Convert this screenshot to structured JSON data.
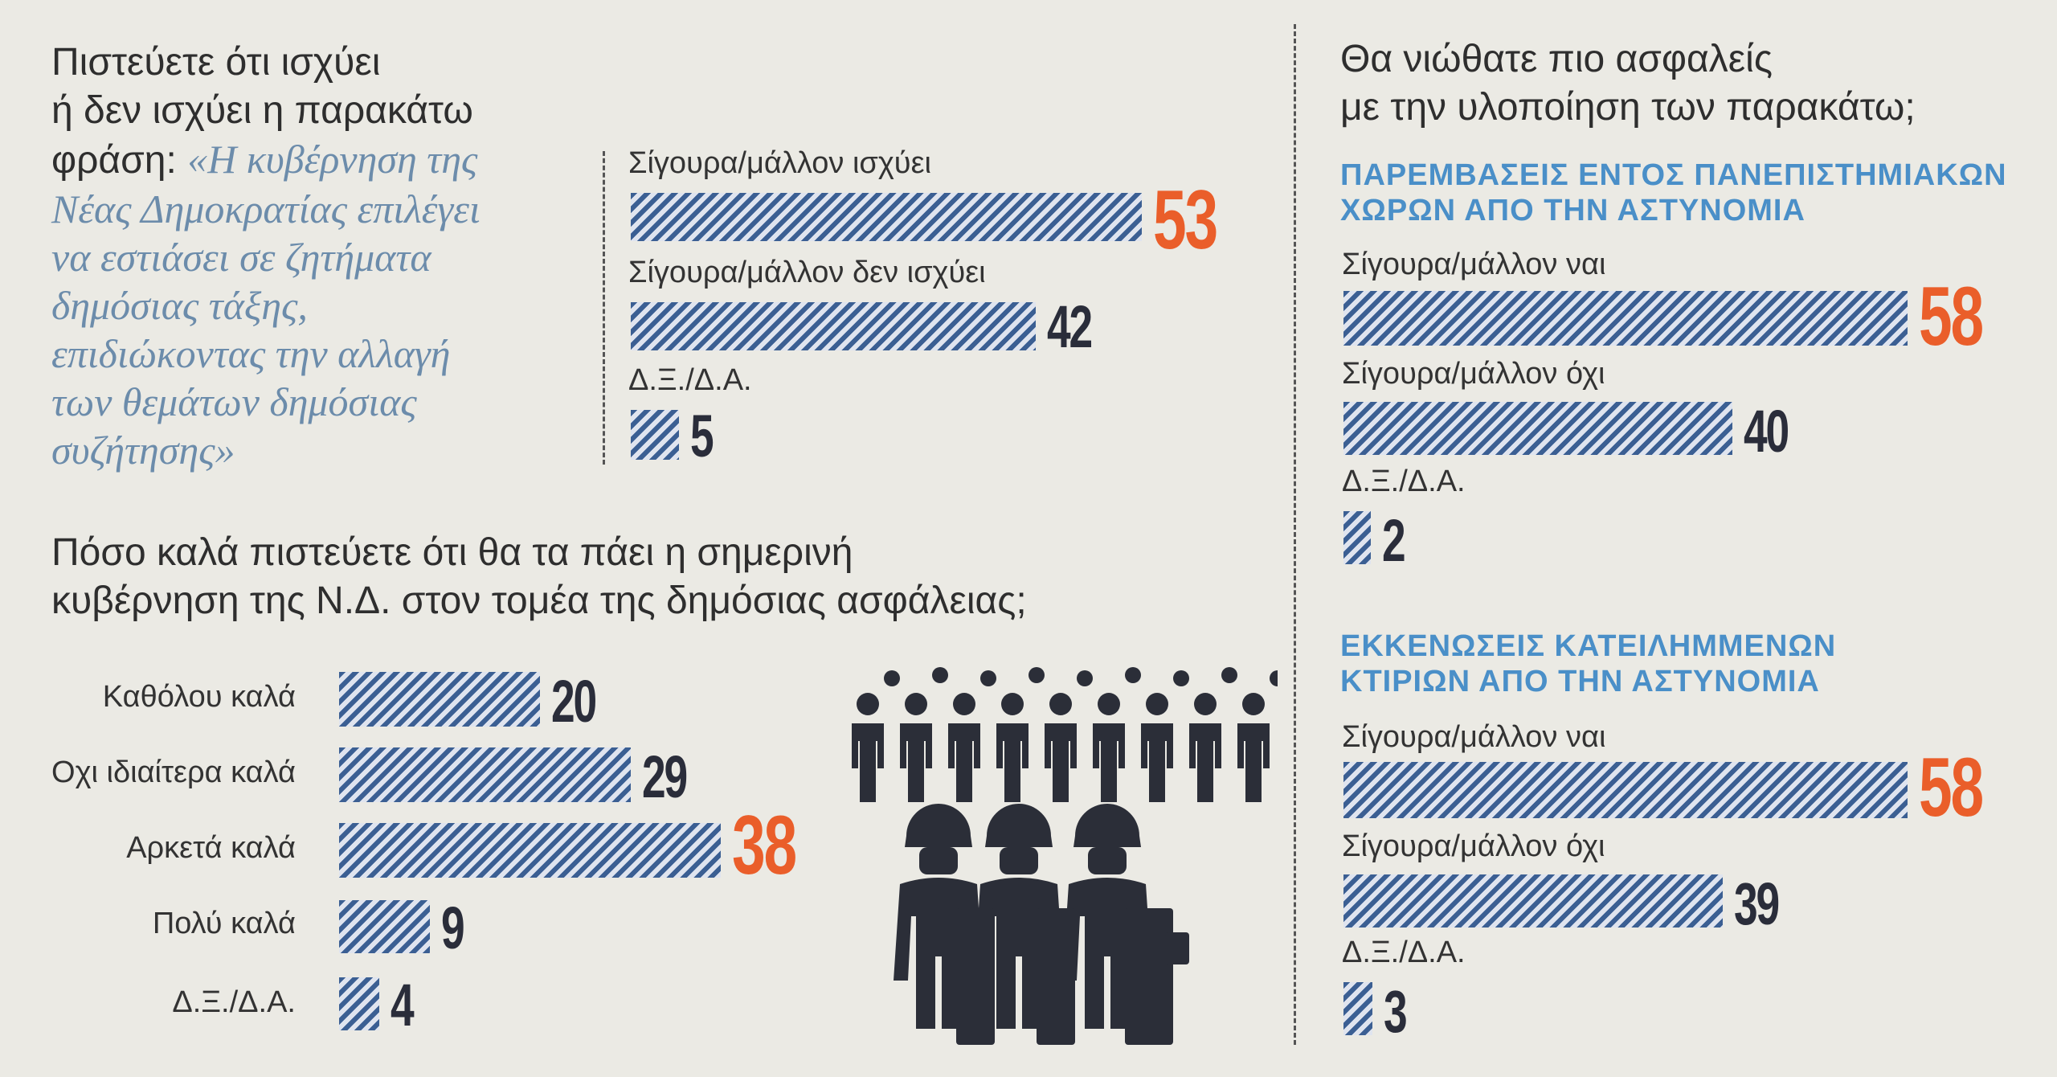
{
  "q1": {
    "line1": "Πιστεύετε ότι ισχύει",
    "line2": "ή δεν ισχύει η παρακάτω",
    "line3_prefix": "φράση:",
    "quote": [
      "«Η κυβέρνηση της",
      "Νέας Δημοκρατίας επιλέγει",
      "να εστιάσει σε ζητήματα",
      "δημόσιας τάξης,",
      "επιδιώκοντας την αλλαγή",
      "των θεμάτων δημόσιας",
      "συζήτησης»"
    ]
  },
  "q2": {
    "line1": "Πόσο καλά πιστεύετε ότι θα τα πάει η σημερινή",
    "line2": "κυβέρνηση της Ν.Δ. στον τομέα της δημόσιας ασφάλειας;"
  },
  "q3": {
    "line1": "Θα νιώθατε πιο ασφαλείς",
    "line2": "με την υλοποίηση των παρακάτω;",
    "section1": [
      "ΠΑΡΕΜΒΑΣΕΙΣ ΕΝΤΟΣ ΠΑΝΕΠΙΣΤΗΜΙΑΚΩΝ",
      "ΧΩΡΩΝ ΑΠΟ ΤΗΝ ΑΣΤΥΝΟΜΙΑ"
    ],
    "section2": [
      "ΕΚΚΕΝΩΣΕΙΣ ΚΑΤΕΙΛΗΜΜΕΝΩΝ",
      "ΚΤΙΡΙΩΝ ΑΠΟ ΤΗΝ ΑΣΤΥΝΟΜΙΑ"
    ]
  },
  "colors": {
    "bar": "#3b5f93",
    "highlight": "#ea5e2a",
    "heading": "#4a8fc8",
    "quote": "#6c8cab"
  },
  "chart_data": [
    {
      "type": "bar",
      "categories": [
        "Σίγουρα/μάλλον ισχύει",
        "Σίγουρα/μάλλον δεν ισχύει",
        "Δ.Ξ./Δ.Α."
      ],
      "values": [
        53,
        42,
        5
      ],
      "values_text": [
        "53",
        "42",
        "5"
      ]
    },
    {
      "type": "bar",
      "categories": [
        "Καθόλου καλά",
        "Οχι ιδιαίτερα καλά",
        "Αρκετά καλά",
        "Πολύ καλά",
        "Δ.Ξ./Δ.Α."
      ],
      "values": [
        20,
        29,
        38,
        9,
        4
      ],
      "values_text": [
        "20",
        "29",
        "38",
        "9",
        "4"
      ]
    },
    {
      "type": "bar",
      "categories": [
        "Σίγουρα/μάλλον ναι",
        "Σίγουρα/μάλλον όχι",
        "Δ.Ξ./Δ.Α."
      ],
      "values": [
        58,
        40,
        2
      ],
      "values_text": [
        "58",
        "40",
        "2"
      ]
    },
    {
      "type": "bar",
      "categories": [
        "Σίγουρα/μάλλον ναι",
        "Σίγουρα/μάλλον όχι",
        "Δ.Ξ./Δ.Α."
      ],
      "values": [
        58,
        39,
        3
      ],
      "values_text": [
        "58",
        "39",
        "3"
      ]
    }
  ]
}
